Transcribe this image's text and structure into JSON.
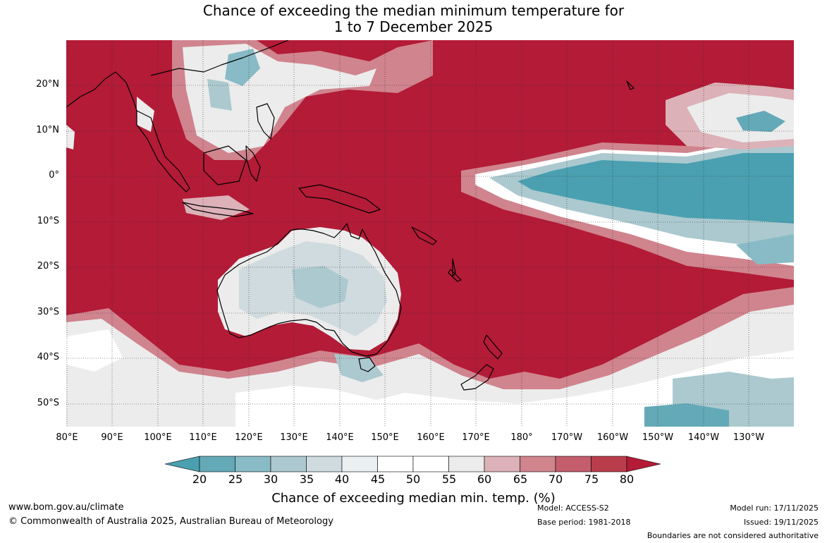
{
  "title": {
    "line1": "Chance of exceeding the median minimum temperature for",
    "line2": "1 to 7 December 2025"
  },
  "lat_labels": [
    "20°N",
    "10°N",
    "0°",
    "10°S",
    "20°S",
    "30°S",
    "40°S",
    "50°S"
  ],
  "lon_labels": [
    "80°E",
    "90°E",
    "100°E",
    "110°E",
    "120°E",
    "130°E",
    "140°E",
    "150°E",
    "160°E",
    "170°E",
    "180°",
    "170°W",
    "160°W",
    "150°W",
    "140°W",
    "130°W"
  ],
  "colorbar": {
    "ticks": [
      "20",
      "25",
      "30",
      "35",
      "40",
      "45",
      "50",
      "55",
      "60",
      "65",
      "70",
      "75",
      "80"
    ],
    "colors": [
      "#4aa0b0",
      "#64a9b7",
      "#88bbc6",
      "#abc9cf",
      "#cfdbde",
      "#eaf0f1",
      "#ffffff",
      "#ffffff",
      "#ececec",
      "#dcb1b8",
      "#d0848e",
      "#c45d6c",
      "#ba3d4b",
      "#b31b37"
    ],
    "label": "Chance of exceeding median min. temp. (%)"
  },
  "footer": {
    "url": "www.bom.gov.au/climate",
    "copyright": "© Commonwealth of Australia 2025, Australian Bureau of Meteorology",
    "model": "Model: ACCESS-S2",
    "base_period": "Base period: 1981-2018",
    "model_run": "Model run: 17/11/2025",
    "issued": "Issued: 19/11/2025",
    "disclaimer": "Boundaries are not considered authoritative"
  }
}
